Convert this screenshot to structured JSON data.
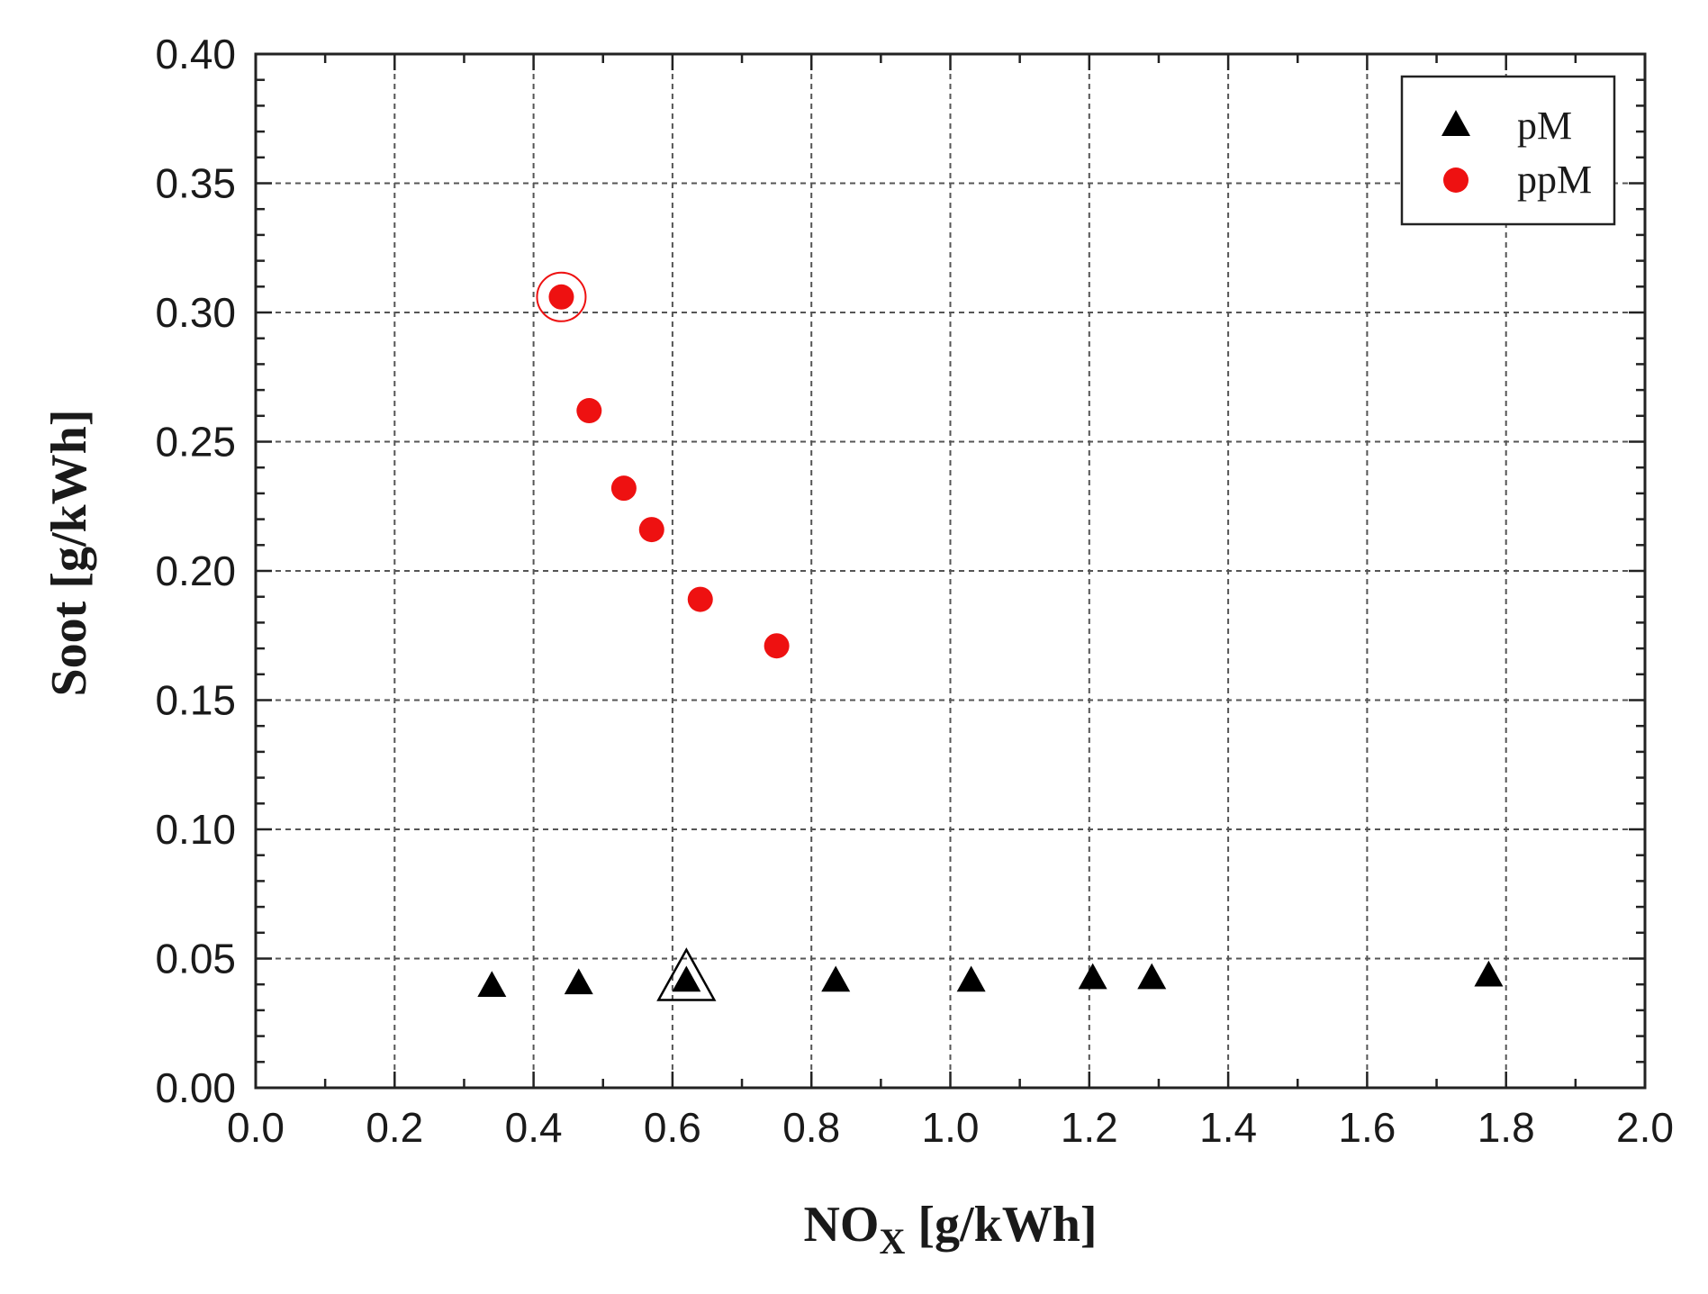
{
  "chart_data": {
    "type": "scatter",
    "title": "",
    "xlabel": {
      "main": "NO",
      "sub": "X",
      "unit": " [g/kWh]"
    },
    "ylabel": "Soot [g/kWh]",
    "xlim": [
      0.0,
      2.0
    ],
    "ylim": [
      0.0,
      0.4
    ],
    "xticks": [
      "0.0",
      "0.2",
      "0.4",
      "0.6",
      "0.8",
      "1.0",
      "1.2",
      "1.4",
      "1.6",
      "1.8",
      "2.0"
    ],
    "yticks": [
      "0.00",
      "0.05",
      "0.10",
      "0.15",
      "0.20",
      "0.25",
      "0.30",
      "0.35",
      "0.40"
    ],
    "grid": true,
    "legend_position": "top-right",
    "series": [
      {
        "name": "pM",
        "marker": "triangle",
        "color": "#000000",
        "x": [
          0.34,
          0.465,
          0.62,
          0.835,
          1.03,
          1.205,
          1.29,
          1.775
        ],
        "y": [
          0.039,
          0.04,
          0.041,
          0.041,
          0.041,
          0.042,
          0.042,
          0.043
        ],
        "highlight_index": 2
      },
      {
        "name": "ppM",
        "marker": "circle",
        "color": "#ee1111",
        "x": [
          0.44,
          0.48,
          0.53,
          0.57,
          0.64,
          0.75
        ],
        "y": [
          0.306,
          0.262,
          0.232,
          0.216,
          0.189,
          0.171
        ],
        "highlight_index": 0
      }
    ]
  }
}
